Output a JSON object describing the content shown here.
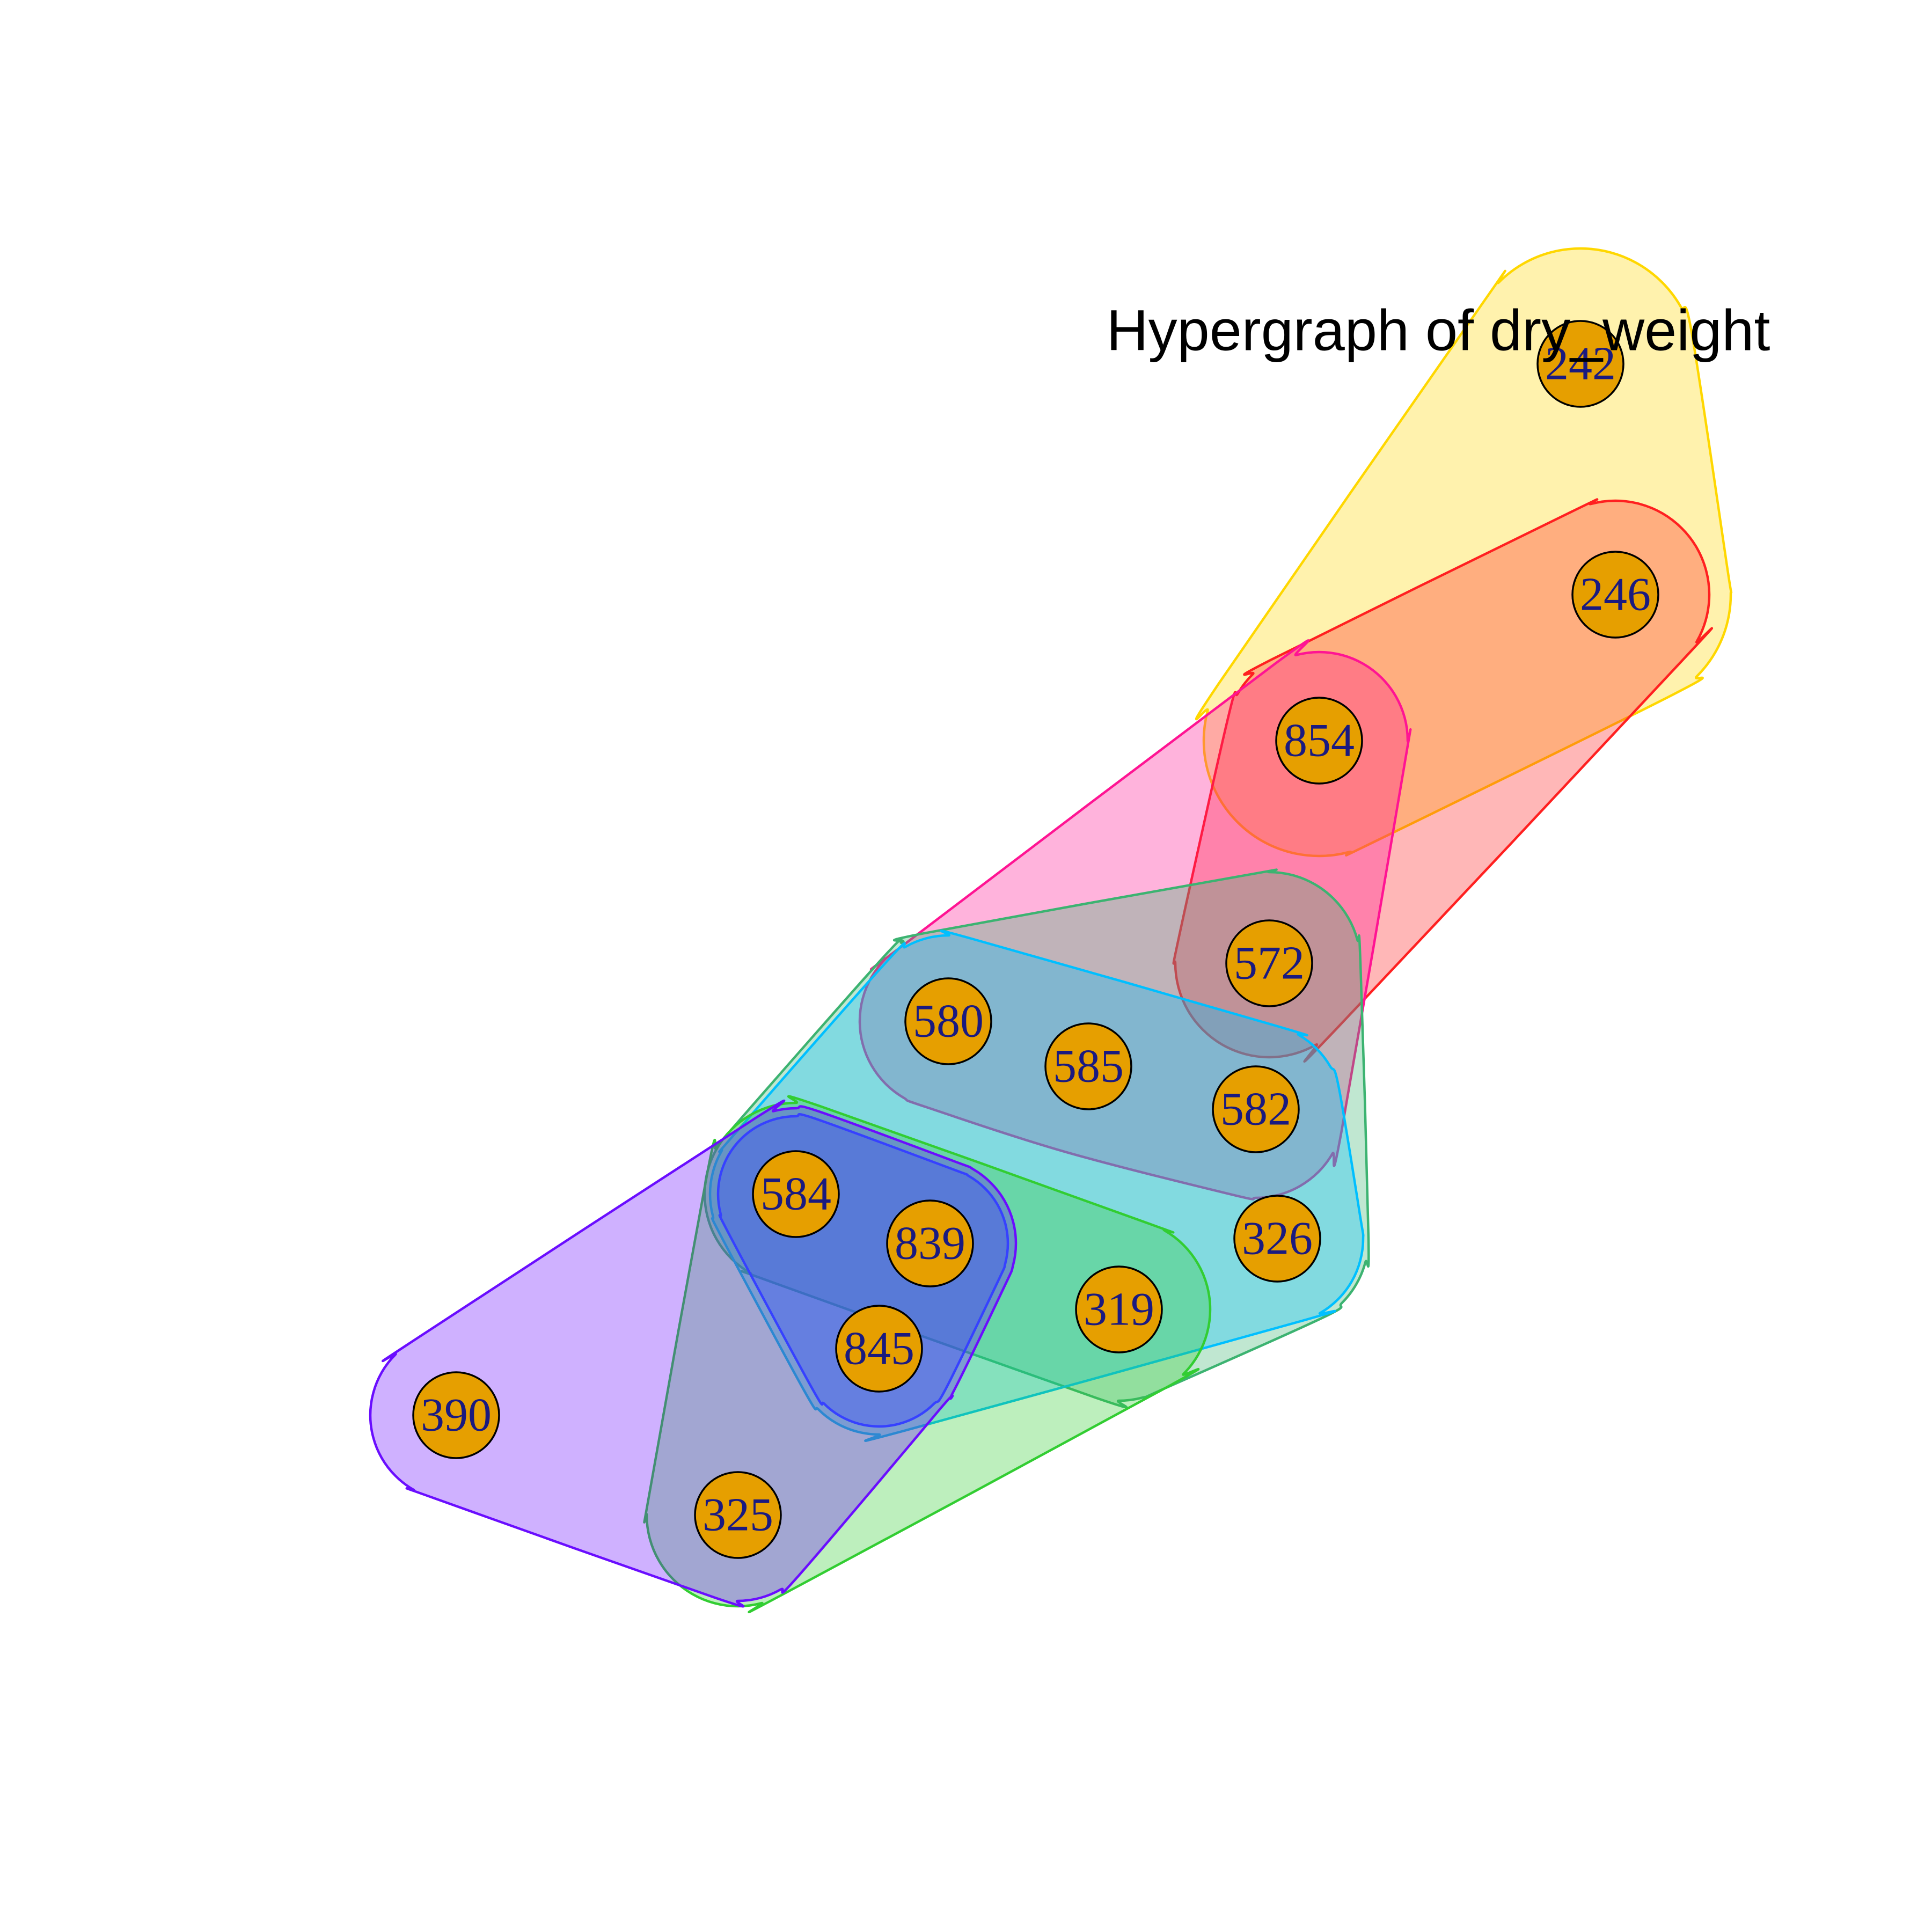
{
  "title": "Hypergraph of dry_weight",
  "nodes": [
    {
      "id": "242",
      "label": "242"
    },
    {
      "id": "246",
      "label": "246"
    },
    {
      "id": "854",
      "label": "854"
    },
    {
      "id": "572",
      "label": "572"
    },
    {
      "id": "580",
      "label": "580"
    },
    {
      "id": "585",
      "label": "585"
    },
    {
      "id": "582",
      "label": "582"
    },
    {
      "id": "584",
      "label": "584"
    },
    {
      "id": "839",
      "label": "839"
    },
    {
      "id": "326",
      "label": "326"
    },
    {
      "id": "319",
      "label": "319"
    },
    {
      "id": "845",
      "label": "845"
    },
    {
      "id": "390",
      "label": "390"
    },
    {
      "id": "325",
      "label": "325"
    }
  ],
  "hyperedges": [
    {
      "id": "e1",
      "color": "#ffd700",
      "members": [
        "242",
        "246",
        "854"
      ]
    },
    {
      "id": "e2",
      "color": "#ff2020",
      "members": [
        "246",
        "854",
        "572"
      ]
    },
    {
      "id": "e3",
      "color": "#ff1493",
      "members": [
        "854",
        "572",
        "580",
        "585",
        "582"
      ]
    },
    {
      "id": "e4",
      "color": "#3cb371",
      "members": [
        "572",
        "580",
        "584",
        "326",
        "319"
      ]
    },
    {
      "id": "e5",
      "color": "#00bfff",
      "members": [
        "580",
        "585",
        "582",
        "584",
        "839",
        "326",
        "845"
      ]
    },
    {
      "id": "e6",
      "color": "#32cd32",
      "members": [
        "584",
        "839",
        "319",
        "325",
        "845"
      ]
    },
    {
      "id": "e7",
      "color": "#1e5aff",
      "members": [
        "584",
        "839",
        "845"
      ]
    },
    {
      "id": "e8",
      "color": "#6a0dff",
      "members": [
        "390",
        "584",
        "839",
        "845",
        "325"
      ]
    }
  ]
}
